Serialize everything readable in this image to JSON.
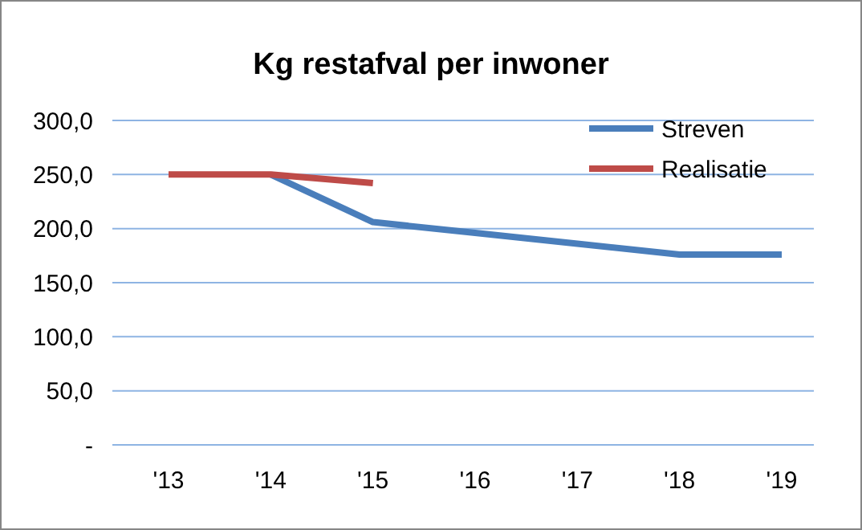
{
  "chart_data": {
    "type": "line",
    "title": "Kg restafval per inwoner",
    "categories": [
      "'13",
      "'14",
      "'15",
      "'16",
      "'17",
      "'18",
      "'19"
    ],
    "series": [
      {
        "name": "Streven",
        "color": "#4a7ebb",
        "values": [
          null,
          250,
          206,
          196,
          186,
          176,
          176
        ]
      },
      {
        "name": "Realisatie",
        "color": "#be4b48",
        "values": [
          250,
          250,
          242,
          null,
          null,
          null,
          null
        ]
      }
    ],
    "ylim": [
      0,
      300
    ],
    "yticks": [
      {
        "value": 0,
        "label": "-"
      },
      {
        "value": 50,
        "label": "50,0"
      },
      {
        "value": 100,
        "label": "100,0"
      },
      {
        "value": 150,
        "label": "150,0"
      },
      {
        "value": 200,
        "label": "200,0"
      },
      {
        "value": 250,
        "label": "250,0"
      },
      {
        "value": 300,
        "label": "300,0"
      }
    ],
    "grid": "y",
    "legend": "top right",
    "marker": "none",
    "line_style": "solid"
  }
}
